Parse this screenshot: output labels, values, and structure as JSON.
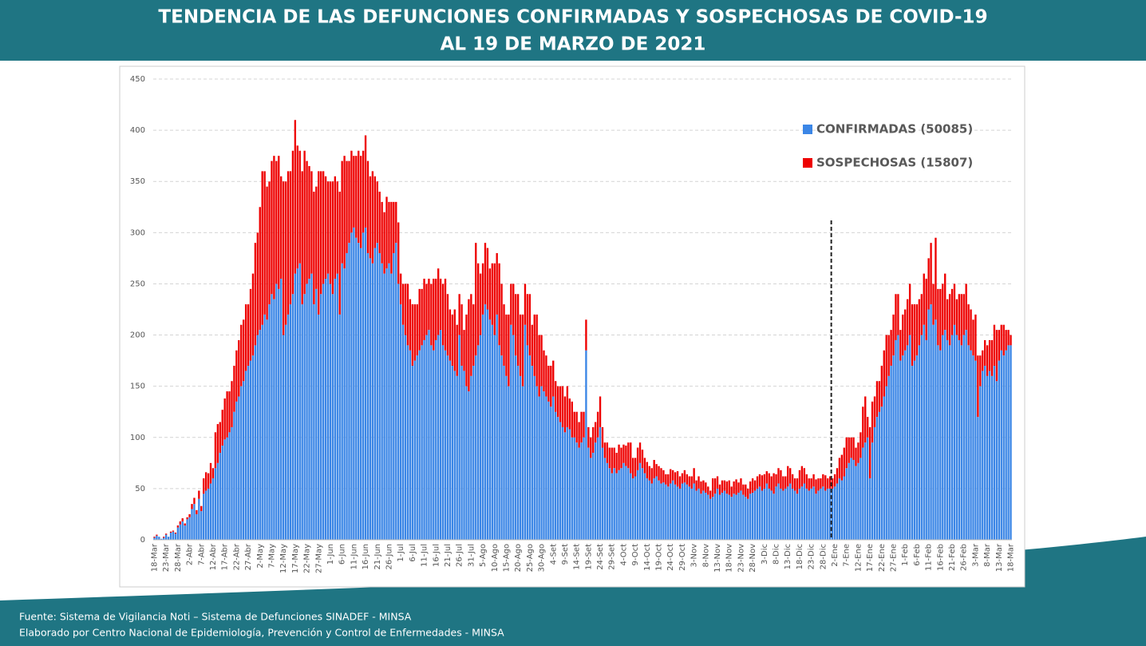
{
  "chart_data": {
    "type": "stacked_bar",
    "title": "TENDENCIA DE LAS DEFUNCIONES CONFIRMADAS Y SOSPECHOSAS DE COVID-19",
    "subtitle": "AL 19 DE MARZO DE 2021",
    "notes": [
      "Fuente: Sistema de Vigilancia Noti – Sistema de Defunciones SINADEF - MINSA",
      "Elaborado por Centro Nacional de Epidemiología, Prevención y Control de Enfermedades - MINSA"
    ],
    "ylim": [
      0,
      450
    ],
    "yticks": [
      0,
      50,
      100,
      150,
      200,
      250,
      300,
      350,
      400,
      450
    ],
    "grid": true,
    "legend": "top-right",
    "categories": [
      "18-Mar",
      null,
      null,
      null,
      null,
      "23-Mar",
      null,
      null,
      null,
      null,
      "28-Mar",
      null,
      null,
      null,
      null,
      "2-Abr",
      null,
      null,
      null,
      null,
      "7-Abr",
      null,
      null,
      null,
      null,
      "12-Abr",
      null,
      null,
      null,
      null,
      "17-Abr",
      null,
      null,
      null,
      null,
      "22-Abr",
      null,
      null,
      null,
      null,
      "27-Abr",
      null,
      null,
      null,
      null,
      "2-May",
      null,
      null,
      null,
      null,
      "7-May",
      null,
      null,
      null,
      null,
      "12-May",
      null,
      null,
      null,
      null,
      "17-May",
      null,
      null,
      null,
      null,
      "22-May",
      null,
      null,
      null,
      null,
      "27-May",
      null,
      null,
      null,
      null,
      "1-Jun",
      null,
      null,
      null,
      null,
      "6-Jun",
      null,
      null,
      null,
      null,
      "11-Jun",
      null,
      null,
      null,
      null,
      "16-Jun",
      null,
      null,
      null,
      null,
      "21-Jun",
      null,
      null,
      null,
      null,
      "26-Jun",
      null,
      null,
      null,
      null,
      "1-Jul",
      null,
      null,
      null,
      null,
      "6-Jul",
      null,
      null,
      null,
      null,
      "11-Jul",
      null,
      null,
      null,
      null,
      "16-Jul",
      null,
      null,
      null,
      null,
      "21-Jul",
      null,
      null,
      null,
      null,
      "26-Jul",
      null,
      null,
      null,
      null,
      "31-Jul",
      null,
      null,
      null,
      null,
      "5-Ago",
      null,
      null,
      null,
      null,
      "10-Ago",
      null,
      null,
      null,
      null,
      "15-Ago",
      null,
      null,
      null,
      null,
      "20-Ago",
      null,
      null,
      null,
      null,
      "25-Ago",
      null,
      null,
      null,
      null,
      "30-Ago",
      null,
      null,
      null,
      null,
      "4-Set",
      null,
      null,
      null,
      null,
      "9-Set",
      null,
      null,
      null,
      null,
      "14-Set",
      null,
      null,
      null,
      null,
      "19-Set",
      null,
      null,
      null,
      null,
      "24-Set",
      null,
      null,
      null,
      null,
      "29-Set",
      null,
      null,
      null,
      null,
      "4-Oct",
      null,
      null,
      null,
      null,
      "9-Oct",
      null,
      null,
      null,
      null,
      "14-Oct",
      null,
      null,
      null,
      null,
      "19-Oct",
      null,
      null,
      null,
      null,
      "24-Oct",
      null,
      null,
      null,
      null,
      "29-Oct",
      null,
      null,
      null,
      null,
      "3-Nov",
      null,
      null,
      null,
      null,
      "8-Nov",
      null,
      null,
      null,
      null,
      "13-Nov",
      null,
      null,
      null,
      null,
      "18-Nov",
      null,
      null,
      null,
      null,
      "23-Nov",
      null,
      null,
      null,
      null,
      "28-Nov",
      null,
      null,
      null,
      null,
      "3-Dic",
      null,
      null,
      null,
      null,
      "8-Dic",
      null,
      null,
      null,
      null,
      "13-Dic",
      null,
      null,
      null,
      null,
      "18-Dic",
      null,
      null,
      null,
      null,
      "23-Dic",
      null,
      null,
      null,
      null,
      "28-Dic",
      null,
      null,
      null,
      null,
      "2-Ene",
      null,
      null,
      null,
      null,
      "7-Ene",
      null,
      null,
      null,
      null,
      "12-Ene",
      null,
      null,
      null,
      null,
      "17-Ene",
      null,
      null,
      null,
      null,
      "22-Ene",
      null,
      null,
      null,
      null,
      "27-Ene",
      null,
      null,
      null,
      null,
      "1-Feb",
      null,
      null,
      null,
      null,
      "6-Feb",
      null,
      null,
      null,
      null,
      "11-Feb",
      null,
      null,
      null,
      null,
      "16-Feb",
      null,
      null,
      null,
      null,
      "21-Feb",
      null,
      null,
      null,
      null,
      "26-Feb",
      null,
      null,
      null,
      null,
      "3-Mar",
      null,
      null,
      null,
      null,
      "8-Mar",
      null,
      null,
      null,
      null,
      "13-Mar",
      null,
      null,
      null,
      null,
      "18-Mar"
    ],
    "series": [
      {
        "name": "CONFIRMADAS (50085)",
        "color": "#3b86e6",
        "values": [
          2,
          4,
          3,
          1,
          2,
          5,
          3,
          7,
          8,
          6,
          12,
          15,
          18,
          14,
          20,
          22,
          30,
          35,
          25,
          40,
          28,
          45,
          48,
          50,
          55,
          60,
          70,
          75,
          85,
          92,
          98,
          100,
          105,
          110,
          125,
          135,
          140,
          150,
          155,
          165,
          170,
          175,
          180,
          190,
          200,
          205,
          210,
          220,
          215,
          230,
          240,
          235,
          250,
          245,
          255,
          200,
          210,
          220,
          230,
          240,
          260,
          265,
          270,
          230,
          240,
          250,
          255,
          260,
          230,
          245,
          220,
          240,
          250,
          255,
          260,
          250,
          240,
          255,
          260,
          220,
          270,
          265,
          280,
          290,
          300,
          305,
          295,
          290,
          285,
          300,
          305,
          280,
          275,
          270,
          285,
          290,
          280,
          270,
          260,
          265,
          270,
          260,
          280,
          290,
          250,
          230,
          210,
          200,
          190,
          185,
          170,
          175,
          180,
          185,
          190,
          195,
          200,
          205,
          190,
          185,
          195,
          200,
          205,
          190,
          185,
          180,
          175,
          170,
          165,
          160,
          200,
          170,
          165,
          150,
          145,
          160,
          170,
          180,
          190,
          200,
          220,
          230,
          225,
          215,
          210,
          200,
          220,
          190,
          180,
          170,
          160,
          150,
          210,
          200,
          180,
          170,
          160,
          150,
          210,
          190,
          180,
          170,
          160,
          150,
          140,
          150,
          145,
          140,
          135,
          130,
          140,
          125,
          120,
          115,
          110,
          105,
          110,
          108,
          100,
          100,
          95,
          90,
          95,
          100,
          185,
          90,
          80,
          85,
          95,
          100,
          110,
          90,
          80,
          75,
          70,
          65,
          70,
          65,
          68,
          70,
          75,
          72,
          70,
          65,
          60,
          62,
          68,
          75,
          70,
          65,
          60,
          58,
          55,
          60,
          62,
          58,
          55,
          56,
          54,
          52,
          55,
          58,
          54,
          52,
          50,
          55,
          56,
          54,
          52,
          50,
          55,
          48,
          50,
          45,
          48,
          46,
          44,
          40,
          42,
          45,
          50,
          44,
          46,
          48,
          45,
          44,
          42,
          45,
          44,
          46,
          48,
          44,
          42,
          40,
          45,
          46,
          48,
          50,
          52,
          48,
          50,
          55,
          50,
          48,
          45,
          52,
          55,
          50,
          48,
          50,
          52,
          55,
          50,
          48,
          45,
          50,
          52,
          55,
          50,
          48,
          50,
          52,
          45,
          48,
          50,
          52,
          48,
          50,
          50,
          50,
          52,
          55,
          60,
          58,
          62,
          70,
          75,
          80,
          78,
          72,
          75,
          80,
          90,
          95,
          100,
          60,
          95,
          110,
          120,
          125,
          130,
          140,
          150,
          160,
          170,
          180,
          195,
          200,
          175,
          180,
          185,
          190,
          200,
          170,
          175,
          180,
          190,
          200,
          210,
          195,
          225,
          230,
          210,
          215,
          190,
          185,
          200,
          205,
          195,
          190,
          200,
          210,
          200,
          195,
          190,
          200,
          205,
          190,
          185,
          180,
          175,
          120,
          150,
          165,
          170,
          160,
          165,
          160,
          170,
          155,
          175,
          185,
          180,
          185,
          190,
          190
        ]
      },
      {
        "name": "SOSPECHOSAS (15807)",
        "color": "#ee0000",
        "values": [
          1,
          1,
          0,
          0,
          1,
          1,
          0,
          1,
          1,
          1,
          2,
          3,
          3,
          2,
          2,
          3,
          5,
          6,
          4,
          8,
          5,
          15,
          18,
          15,
          20,
          10,
          35,
          38,
          30,
          35,
          40,
          45,
          40,
          45,
          45,
          50,
          55,
          60,
          60,
          65,
          60,
          70,
          80,
          100,
          100,
          120,
          150,
          140,
          130,
          120,
          130,
          140,
          120,
          130,
          100,
          150,
          140,
          140,
          130,
          140,
          150,
          120,
          110,
          130,
          140,
          120,
          110,
          100,
          110,
          100,
          140,
          120,
          110,
          100,
          90,
          100,
          110,
          100,
          90,
          120,
          100,
          110,
          90,
          80,
          80,
          70,
          80,
          90,
          90,
          80,
          90,
          90,
          80,
          90,
          70,
          60,
          60,
          60,
          60,
          70,
          60,
          70,
          50,
          40,
          60,
          30,
          40,
          50,
          60,
          50,
          60,
          55,
          50,
          60,
          55,
          60,
          50,
          50,
          60,
          70,
          60,
          65,
          50,
          60,
          70,
          60,
          50,
          50,
          60,
          50,
          40,
          60,
          40,
          70,
          90,
          80,
          60,
          110,
          80,
          60,
          50,
          60,
          60,
          50,
          60,
          70,
          60,
          80,
          70,
          60,
          60,
          70,
          40,
          50,
          60,
          70,
          60,
          70,
          40,
          50,
          60,
          40,
          60,
          70,
          60,
          50,
          40,
          40,
          35,
          40,
          35,
          30,
          30,
          35,
          40,
          35,
          40,
          30,
          35,
          25,
          30,
          25,
          30,
          25,
          30,
          20,
          20,
          25,
          20,
          25,
          30,
          20,
          15,
          20,
          20,
          25,
          20,
          20,
          25,
          20,
          18,
          20,
          25,
          30,
          20,
          18,
          22,
          20,
          18,
          15,
          16,
          14,
          15,
          18,
          12,
          14,
          15,
          12,
          10,
          12,
          14,
          10,
          12,
          15,
          12,
          10,
          12,
          10,
          10,
          12,
          15,
          10,
          12,
          12,
          10,
          10,
          8,
          8,
          18,
          15,
          12,
          10,
          12,
          10,
          12,
          14,
          10,
          12,
          15,
          10,
          12,
          10,
          12,
          10,
          12,
          14,
          10,
          12,
          12,
          15,
          14,
          12,
          15,
          14,
          20,
          12,
          15,
          18,
          14,
          12,
          20,
          15,
          14,
          12,
          15,
          18,
          20,
          15,
          14,
          12,
          10,
          12,
          14,
          12,
          10,
          12,
          15,
          10,
          12,
          10,
          12,
          15,
          20,
          25,
          28,
          30,
          25,
          20,
          22,
          18,
          20,
          25,
          40,
          45,
          20,
          50,
          40,
          30,
          35,
          30,
          40,
          45,
          50,
          40,
          35,
          40,
          45,
          40,
          30,
          40,
          40,
          45,
          50,
          60,
          55,
          50,
          45,
          40,
          50,
          60,
          50,
          60,
          40,
          80,
          55,
          60,
          50,
          55,
          40,
          50,
          45,
          40,
          35,
          45,
          50,
          40,
          45,
          40,
          40,
          35,
          45,
          60,
          30,
          20,
          25,
          30,
          30,
          35,
          40,
          50,
          30,
          25,
          30,
          20,
          15,
          10
        ]
      }
    ]
  }
}
